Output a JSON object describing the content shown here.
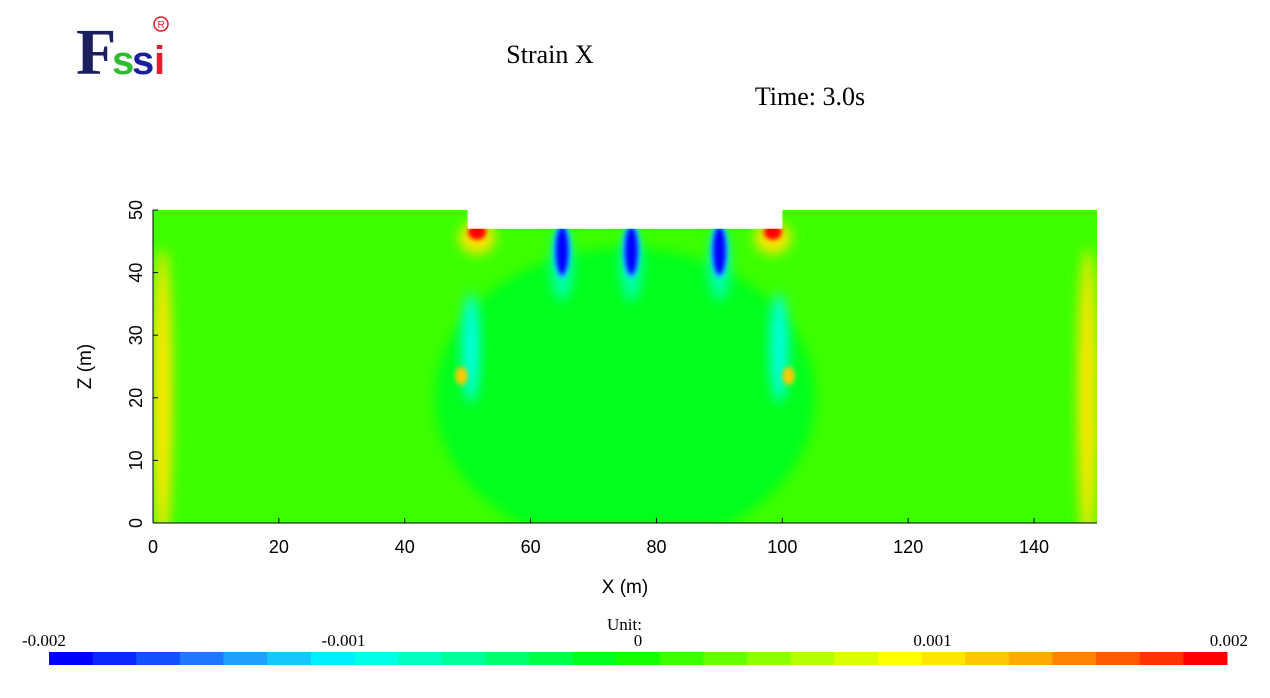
{
  "logo": {
    "text_f": "F",
    "text_s1": "s",
    "text_s2": "s",
    "text_i": "i",
    "registered": "R"
  },
  "chart_data": {
    "type": "heatmap",
    "title": "Strain X",
    "subtitle": "Time: 3.0s",
    "xlabel": "X (m)",
    "ylabel": "Z (m)",
    "xlim": [
      0,
      150
    ],
    "ylim": [
      0,
      50
    ],
    "xticks": [
      0,
      20,
      40,
      60,
      80,
      100,
      120,
      140
    ],
    "yticks": [
      0,
      10,
      20,
      30,
      40,
      50
    ],
    "domain_outline": [
      [
        0,
        50
      ],
      [
        50,
        50
      ],
      [
        50,
        47
      ],
      [
        100,
        47
      ],
      [
        100,
        50
      ],
      [
        150,
        50
      ],
      [
        150,
        0
      ],
      [
        0,
        0
      ]
    ],
    "background_value": 0.0002,
    "features": [
      {
        "kind": "excavation_interior",
        "x": 75,
        "z": 20,
        "value": -0.0002
      },
      {
        "kind": "strut_band",
        "x": 65,
        "z": 43.5,
        "value": -0.002
      },
      {
        "kind": "strut_band",
        "x": 76,
        "z": 43.5,
        "value": -0.002
      },
      {
        "kind": "strut_band",
        "x": 90,
        "z": 43.5,
        "value": -0.002
      },
      {
        "kind": "corner_hotspot",
        "x": 51.5,
        "z": 46.5,
        "value": 0.002
      },
      {
        "kind": "corner_hotspot",
        "x": 98.5,
        "z": 46.5,
        "value": 0.002
      },
      {
        "kind": "wall_shear",
        "x": 50.5,
        "z": 28,
        "value": -0.0009
      },
      {
        "kind": "wall_shear",
        "x": 99.5,
        "z": 28,
        "value": -0.0009
      },
      {
        "kind": "wall_toe",
        "x": 49,
        "z": 23.5,
        "value": 0.0012
      },
      {
        "kind": "wall_toe",
        "x": 101,
        "z": 23.5,
        "value": 0.0012
      },
      {
        "kind": "lateral_boundary",
        "x": 1.5,
        "z": 20,
        "value": 0.001
      },
      {
        "kind": "lateral_boundary",
        "x": 148.5,
        "z": 20,
        "value": 0.001
      }
    ],
    "colorbar": {
      "unit_label": "Unit:",
      "min": -0.002,
      "max": 0.002,
      "tick_labels": [
        "-0.002",
        "-0.001",
        "0",
        "0.001",
        "0.002"
      ],
      "tick_values": [
        -0.002,
        -0.001,
        0,
        0.001,
        0.002
      ],
      "colors": [
        "#0000ff",
        "#0a28ff",
        "#1450ff",
        "#1e78ff",
        "#1ea0ff",
        "#14c8ff",
        "#00f0ff",
        "#00ffe6",
        "#00ffbe",
        "#00ff96",
        "#00ff6e",
        "#00ff46",
        "#00ff1e",
        "#14ff00",
        "#3cff00",
        "#64ff00",
        "#8cff00",
        "#b4ff00",
        "#dcff00",
        "#ffff00",
        "#ffe600",
        "#ffc800",
        "#ffaa00",
        "#ff8200",
        "#ff5a00",
        "#ff3200",
        "#ff0000"
      ]
    }
  }
}
